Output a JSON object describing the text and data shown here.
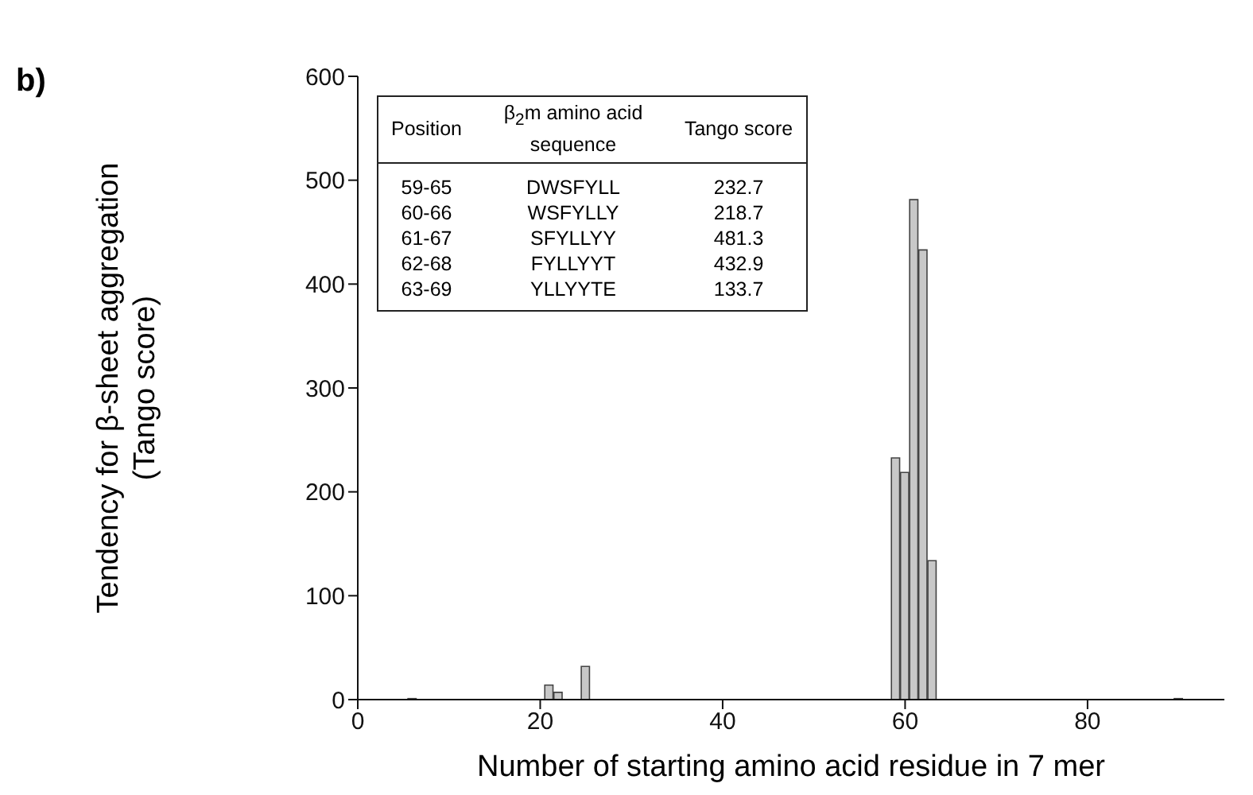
{
  "chart_data": {
    "type": "bar",
    "ylabel": "Tendency for β-sheet aggregation\n(Tango score)",
    "xlabel": "Number of starting amino acid residue in 7 mer",
    "x": [
      6,
      21,
      22,
      25,
      59,
      60,
      61,
      62,
      63,
      90
    ],
    "values": [
      1,
      14,
      7,
      32,
      232.7,
      218.7,
      481.3,
      432.9,
      133.7,
      1
    ],
    "color": "#c8c8c8",
    "xlim": [
      0,
      95
    ],
    "xticks": [
      0,
      20,
      40,
      60,
      80
    ],
    "ylim": [
      0,
      600
    ],
    "yticks": [
      0,
      100,
      200,
      300,
      400,
      500,
      600
    ],
    "grid": false,
    "legend": false,
    "annotations": [
      "b)",
      "Position",
      "β$_{2}$m amino acid sequence",
      "Tango score",
      "59-65",
      "DWSFYLL",
      "232.7",
      "60-66",
      "WSFYLLY",
      "218.7",
      "61-67",
      "SFYLLYY",
      "481.3",
      "62-68",
      "FYLLYYT",
      "432.9",
      "63-69",
      "YLLYYTE",
      "133.7"
    ]
  }
}
